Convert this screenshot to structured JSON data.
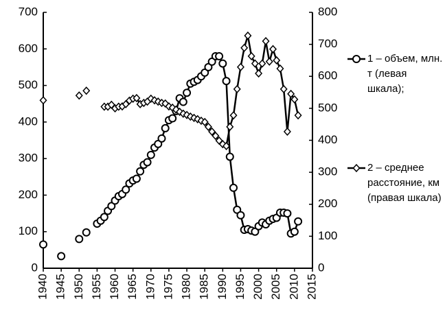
{
  "chart_data": {
    "type": "line",
    "x": [
      1940,
      1941,
      1942,
      1943,
      1944,
      1945,
      1946,
      1947,
      1948,
      1949,
      1950,
      1951,
      1952,
      1953,
      1954,
      1955,
      1956,
      1957,
      1958,
      1959,
      1960,
      1961,
      1962,
      1963,
      1964,
      1965,
      1966,
      1967,
      1968,
      1969,
      1970,
      1971,
      1972,
      1973,
      1974,
      1975,
      1976,
      1977,
      1978,
      1979,
      1980,
      1981,
      1982,
      1983,
      1984,
      1985,
      1986,
      1987,
      1988,
      1989,
      1990,
      1991,
      1992,
      1993,
      1994,
      1995,
      1996,
      1997,
      1998,
      1999,
      2000,
      2001,
      2002,
      2003,
      2004,
      2005,
      2006,
      2007,
      2008,
      2009,
      2010,
      2011
    ],
    "series": [
      {
        "name": "1 – объем, млн. т (левая шкала);",
        "color": "#000000",
        "marker": "circle",
        "values": [
          65,
          null,
          null,
          null,
          null,
          33,
          null,
          null,
          null,
          null,
          80,
          null,
          98,
          null,
          null,
          122,
          130,
          140,
          157,
          170,
          185,
          197,
          203,
          215,
          232,
          240,
          245,
          265,
          283,
          290,
          310,
          330,
          340,
          355,
          383,
          405,
          410,
          430,
          465,
          455,
          480,
          505,
          510,
          515,
          525,
          535,
          550,
          565,
          580,
          580,
          560,
          512,
          305,
          220,
          160,
          145,
          105,
          107,
          103,
          100,
          115,
          125,
          120,
          130,
          135,
          138,
          152,
          152,
          150,
          95,
          100,
          128
        ]
      },
      {
        "name": "2 – среднее расстояние, км (правая шкала)",
        "color": "#000000",
        "marker": "diamond",
        "axis": "y2",
        "values": [
          525,
          null,
          null,
          null,
          null,
          null,
          null,
          null,
          null,
          null,
          540,
          null,
          555,
          null,
          null,
          null,
          null,
          505,
          505,
          511,
          500,
          505,
          506,
          513,
          524,
          530,
          532,
          513,
          517,
          521,
          530,
          525,
          521,
          517,
          515,
          506,
          502,
          496,
          489,
          483,
          479,
          474,
          470,
          466,
          461,
          457,
          442,
          427,
          414,
          399,
          388,
          382,
          442,
          478,
          560,
          629,
          689,
          727,
          663,
          640,
          609,
          640,
          710,
          646,
          685,
          650,
          624,
          560,
          427,
          545,
          528,
          478
        ]
      }
    ],
    "xlim": [
      1940,
      2015
    ],
    "xticks": [
      1940,
      1945,
      1950,
      1955,
      1960,
      1965,
      1970,
      1975,
      1980,
      1985,
      1990,
      1995,
      2000,
      2005,
      2010,
      2015
    ],
    "ylim": [
      0,
      700
    ],
    "yticks": [
      0,
      100,
      200,
      300,
      400,
      500,
      600,
      700
    ],
    "y2lim": [
      0,
      800
    ],
    "y2ticks": [
      0,
      100,
      200,
      300,
      400,
      500,
      600,
      700,
      800
    ],
    "grid": false
  }
}
